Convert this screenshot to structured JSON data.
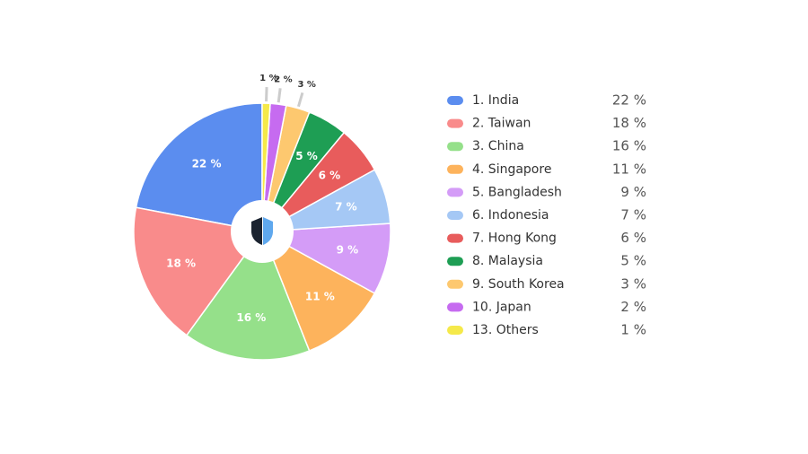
{
  "chart_data": {
    "type": "pie",
    "categories": [
      "1. India",
      "2. Taiwan",
      "3. China",
      "4. Singapore",
      "5. Bangladesh",
      "6. Indonesia",
      "7. Hong Kong",
      "8. Malaysia",
      "9. South Korea",
      "10. Japan",
      "13. Others"
    ],
    "values": [
      22,
      18,
      16,
      11,
      9,
      7,
      6,
      5,
      3,
      2,
      1
    ],
    "value_labels": [
      "22 %",
      "18 %",
      "16 %",
      "11 %",
      "9 %",
      "7 %",
      "6 %",
      "5 %",
      "3 %",
      "2 %",
      "1 %"
    ],
    "colors": [
      "#5b8def",
      "#f98b8b",
      "#95e08a",
      "#fdb35c",
      "#d49cf7",
      "#a5c8f5",
      "#e85c5c",
      "#1e9e54",
      "#fdc86f",
      "#c66bf0",
      "#f5e94a"
    ],
    "legend": "right"
  }
}
